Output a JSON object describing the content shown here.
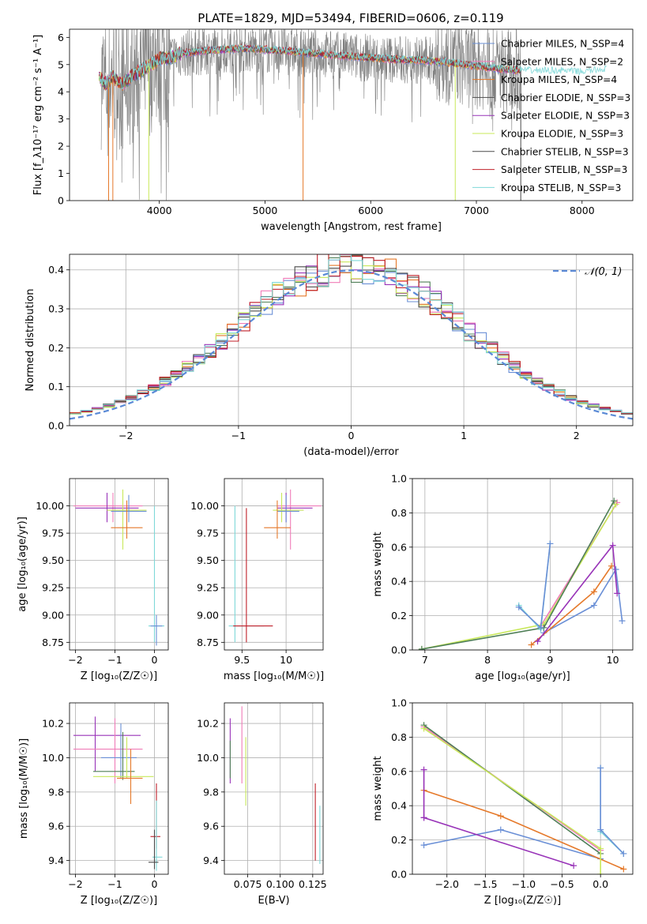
{
  "figure": {
    "title": "PLATE=1829, MJD=53494, FIBERID=0606, z=0.119"
  },
  "colors": {
    "chabrier_miles": "#6a8fd6",
    "salpeter_miles": "#f07cb8",
    "kroupa_miles": "#e5792a",
    "chabrier_elodie": "#4f7f57",
    "salpeter_elodie": "#9833b8",
    "kroupa_elodie": "#c8e85a",
    "chabrier_stelib": "#4a4a4a",
    "salpeter_stelib": "#c0202a",
    "kroupa_stelib": "#7fd8d8",
    "data": "#808080",
    "gaussian": "#5b8ad6",
    "grid": "#b0b0b0"
  },
  "chart_data": [
    {
      "id": "spectrum",
      "type": "line",
      "xlabel": "wavelength [Angstrom, rest frame]",
      "ylabel": "Flux [f_λ10⁻¹⁷ erg cm⁻² s⁻¹ A⁻¹]",
      "xlim": [
        3150,
        8480
      ],
      "ylim": [
        0,
        6.3
      ],
      "xticks": [
        4000,
        5000,
        6000,
        7000,
        8000
      ],
      "yticks": [
        0,
        1,
        2,
        3,
        4,
        5,
        6
      ],
      "grid": false,
      "legend_position": "right",
      "legend": [
        "Chabrier MILES, N_SSP=4",
        "Salpeter MILES, N_SSP=2",
        "Kroupa MILES, N_SSP=4",
        "Chabrier ELODIE, N_SSP=3",
        "Salpeter ELODIE, N_SSP=3",
        "Kroupa ELODIE, N_SSP=3",
        "Chabrier STELIB, N_SSP=3",
        "Salpeter STELIB, N_SSP=3",
        "Kroupa STELIB, N_SSP=3"
      ],
      "continuum": {
        "x": [
          3430,
          3500,
          3550,
          3650,
          3750,
          3900,
          4000,
          4100,
          4200,
          4400,
          4600,
          4800,
          5000,
          5200,
          5500,
          5800,
          6000,
          6200,
          6500,
          6800,
          7000,
          7200,
          7500,
          7800,
          8000,
          8200
        ],
        "y": [
          4.55,
          4.25,
          4.55,
          4.3,
          4.6,
          4.95,
          5.2,
          5.25,
          5.4,
          5.5,
          5.55,
          5.6,
          5.55,
          5.5,
          5.4,
          5.3,
          5.25,
          5.2,
          5.15,
          5.05,
          4.95,
          4.85,
          4.75,
          4.75,
          4.7,
          4.8
        ]
      }
    },
    {
      "id": "residuals",
      "type": "histogram",
      "xlabel": "(data-model)/error",
      "ylabel": "Normed distribution",
      "xlim": [
        -2.5,
        2.5
      ],
      "ylim": [
        0,
        0.44
      ],
      "xticks": [
        -2,
        -1,
        0,
        1,
        2
      ],
      "yticks": [
        0.0,
        0.1,
        0.2,
        0.3,
        0.4
      ],
      "grid": true,
      "legend_position": "top-right",
      "legend": [
        "𝒩(0, 1)"
      ],
      "bin_width": 0.1
    },
    {
      "id": "age_vs_Z",
      "type": "errorbar",
      "xlabel": "Z [log₁₀(Z/Z☉)]",
      "ylabel": "age  [log₁₀(age/yr)]",
      "xlim": [
        -2.15,
        0.35
      ],
      "ylim": [
        8.68,
        10.25
      ],
      "xticks": [
        -2,
        -1,
        0
      ],
      "yticks": [
        8.75,
        9.0,
        9.25,
        9.5,
        9.75,
        10.0
      ],
      "grid": true,
      "points": [
        {
          "x": -1.05,
          "y": 10.0,
          "xl": -2.05,
          "xh": -0.3,
          "yl": 9.85,
          "yh": 10.12,
          "c": "pink"
        },
        {
          "x": -1.2,
          "y": 9.98,
          "xl": -2.0,
          "xh": -0.4,
          "yl": 9.85,
          "yh": 10.12,
          "c": "purple"
        },
        {
          "x": -0.8,
          "y": 9.96,
          "xl": -1.2,
          "xh": -0.2,
          "yl": 9.6,
          "yh": 10.15,
          "c": "lime"
        },
        {
          "x": -0.65,
          "y": 9.95,
          "xl": -1.1,
          "xh": -0.2,
          "yl": 9.85,
          "yh": 10.1,
          "c": "blue"
        },
        {
          "x": -0.7,
          "y": 9.8,
          "xl": -1.1,
          "xh": -0.3,
          "yl": 9.7,
          "yh": 10.05,
          "c": "orange"
        },
        {
          "x": 0.0,
          "y": 8.9,
          "xl": -0.15,
          "xh": 0.25,
          "yl": 8.75,
          "yh": 10.0,
          "c": "teal"
        },
        {
          "x": 0.05,
          "y": 8.9,
          "xl": -0.1,
          "xh": 0.2,
          "yl": 8.72,
          "yh": 9.0,
          "c": "blue"
        }
      ]
    },
    {
      "id": "age_vs_mass",
      "type": "errorbar",
      "xlabel": "mass [log₁₀(M/M☉)]",
      "ylabel": "",
      "xlim": [
        9.3,
        10.42
      ],
      "ylim": [
        8.68,
        10.25
      ],
      "xticks": [
        9.5,
        10.0
      ],
      "yticks": [
        8.75,
        9.0,
        9.25,
        9.5,
        9.75,
        10.0
      ],
      "grid": true,
      "points": [
        {
          "x": 10.05,
          "y": 10.0,
          "xl": 9.9,
          "xh": 10.4,
          "yl": 9.6,
          "yh": 10.15,
          "c": "pink"
        },
        {
          "x": 10.0,
          "y": 9.98,
          "xl": 9.9,
          "xh": 10.3,
          "yl": 9.85,
          "yh": 10.12,
          "c": "purple"
        },
        {
          "x": 9.95,
          "y": 9.96,
          "xl": 9.85,
          "xh": 10.2,
          "yl": 9.85,
          "yh": 10.12,
          "c": "lime"
        },
        {
          "x": 10.0,
          "y": 9.95,
          "xl": 9.9,
          "xh": 10.15,
          "yl": 9.85,
          "yh": 10.1,
          "c": "blue"
        },
        {
          "x": 9.9,
          "y": 9.8,
          "xl": 9.75,
          "xh": 10.05,
          "yl": 9.7,
          "yh": 10.05,
          "c": "orange"
        },
        {
          "x": 9.42,
          "y": 8.9,
          "xl": 9.35,
          "xh": 9.75,
          "yl": 8.75,
          "yh": 10.0,
          "c": "teal"
        },
        {
          "x": 9.55,
          "y": 8.9,
          "xl": 9.4,
          "xh": 9.85,
          "yl": 8.75,
          "yh": 9.98,
          "c": "red"
        }
      ]
    },
    {
      "id": "weight_vs_age",
      "type": "line",
      "xlabel": "age  [log₁₀(age/yr)]",
      "ylabel": "mass weight",
      "xlim": [
        6.8,
        10.32
      ],
      "ylim": [
        0.0,
        1.0
      ],
      "xticks": [
        7,
        8,
        9,
        10
      ],
      "yticks": [
        0.0,
        0.2,
        0.4,
        0.6,
        0.8,
        1.0
      ],
      "grid": true,
      "series": [
        {
          "c": "blue",
          "x": [
            8.9,
            9.7,
            10.05,
            10.15
          ],
          "y": [
            0.1,
            0.26,
            0.47,
            0.17
          ]
        },
        {
          "c": "orange",
          "x": [
            8.7,
            9.7,
            9.98
          ],
          "y": [
            0.03,
            0.34,
            0.49
          ]
        },
        {
          "c": "purple",
          "x": [
            8.8,
            10.0,
            10.07
          ],
          "y": [
            0.05,
            0.61,
            0.33
          ]
        },
        {
          "c": "pink",
          "x": [
            8.85,
            10.07
          ],
          "y": [
            0.14,
            0.86
          ]
        },
        {
          "c": "lime",
          "x": [
            6.95,
            8.9,
            10.05
          ],
          "y": [
            0.005,
            0.15,
            0.85
          ]
        },
        {
          "c": "green",
          "x": [
            6.95,
            8.9,
            10.02
          ],
          "y": [
            0.005,
            0.13,
            0.87
          ]
        },
        {
          "c": "teal",
          "x": [
            8.5,
            8.85,
            9.0
          ],
          "y": [
            0.26,
            0.12,
            0.62
          ]
        },
        {
          "c": "blue",
          "x": [
            8.5,
            8.85,
            9.0
          ],
          "y": [
            0.25,
            0.13,
            0.62
          ]
        }
      ]
    },
    {
      "id": "mass_vs_Z",
      "type": "errorbar",
      "xlabel": "Z [log₁₀(Z/Z☉)]",
      "ylabel": "mass [log₁₀(M/M☉)]",
      "xlim": [
        -2.15,
        0.35
      ],
      "ylim": [
        9.32,
        10.32
      ],
      "xticks": [
        -2,
        -1,
        0
      ],
      "yticks": [
        9.4,
        9.6,
        9.8,
        10.0,
        10.2
      ],
      "grid": true,
      "points": [
        {
          "x": -1.5,
          "y": 10.13,
          "xl": -2.05,
          "xh": -0.35,
          "yl": 9.92,
          "yh": 10.24,
          "c": "purple"
        },
        {
          "x": -1.0,
          "y": 10.05,
          "xl": -2.05,
          "xh": -0.3,
          "yl": 9.85,
          "yh": 10.23,
          "c": "pink"
        },
        {
          "x": -0.85,
          "y": 10.0,
          "xl": -1.35,
          "xh": -0.45,
          "yl": 9.88,
          "yh": 10.2,
          "c": "blue"
        },
        {
          "x": -0.8,
          "y": 9.92,
          "xl": -1.55,
          "xh": -0.5,
          "yl": 9.87,
          "yh": 10.15,
          "c": "green"
        },
        {
          "x": -0.7,
          "y": 9.89,
          "xl": -1.55,
          "xh": -0.02,
          "yl": 9.88,
          "yh": 10.12,
          "c": "lime"
        },
        {
          "x": -0.6,
          "y": 9.88,
          "xl": -0.95,
          "xh": -0.3,
          "yl": 9.73,
          "yh": 10.05,
          "c": "orange"
        },
        {
          "x": 0.05,
          "y": 9.54,
          "xl": -0.1,
          "xh": 0.15,
          "yl": 9.47,
          "yh": 9.85,
          "c": "red"
        },
        {
          "x": 0.05,
          "y": 9.42,
          "xl": -0.05,
          "xh": 0.2,
          "yl": 9.34,
          "yh": 9.75,
          "c": "teal"
        },
        {
          "x": 0.0,
          "y": 9.39,
          "xl": -0.15,
          "xh": 0.1,
          "yl": 9.35,
          "yh": 9.58,
          "c": "stelib"
        }
      ]
    },
    {
      "id": "mass_vs_EBV",
      "type": "errorbar",
      "xlabel": "E(B-V)",
      "ylabel": "",
      "xlim": [
        0.057,
        0.133
      ],
      "ylim": [
        9.32,
        10.32
      ],
      "xticks": [
        0.075,
        0.1,
        0.125
      ],
      "xticklabels": [
        "0.075",
        "0.100",
        "0.125"
      ],
      "yticks": [
        9.4,
        9.6,
        9.8,
        10.0,
        10.2
      ],
      "grid": true,
      "points": [
        {
          "x": 0.0615,
          "y": 10.05,
          "yl": 9.85,
          "yh": 10.23,
          "c": "purple"
        },
        {
          "x": 0.0615,
          "y": 10.0,
          "yl": 9.88,
          "yh": 10.1,
          "c": "green"
        },
        {
          "x": 0.0705,
          "y": 10.05,
          "yl": 9.85,
          "yh": 10.3,
          "c": "pink"
        },
        {
          "x": 0.0735,
          "y": 9.9,
          "yl": 9.72,
          "yh": 10.12,
          "c": "lime"
        },
        {
          "x": 0.127,
          "y": 9.55,
          "yl": 9.4,
          "yh": 9.85,
          "c": "red"
        },
        {
          "x": 0.1305,
          "y": 9.45,
          "yl": 9.38,
          "yh": 9.72,
          "c": "teal"
        }
      ]
    },
    {
      "id": "weight_vs_Z",
      "type": "line",
      "xlabel": "Z [log₁₀(Z/Z☉)]",
      "ylabel": "mass weight",
      "xlim": [
        -2.45,
        0.42
      ],
      "ylim": [
        0.0,
        1.0
      ],
      "xticks": [
        -2.0,
        -1.5,
        -1.0,
        -0.5,
        0.0
      ],
      "xticklabels": [
        "−2.0",
        "−1.5",
        "−1.0",
        "−0.5",
        "0.0"
      ],
      "yticks": [
        0.0,
        0.2,
        0.4,
        0.6,
        0.8,
        1.0
      ],
      "grid": true,
      "series": [
        {
          "c": "blue",
          "x": [
            -2.3,
            -1.3,
            0.0
          ],
          "y": [
            0.17,
            0.26,
            0.09
          ]
        },
        {
          "c": "orange",
          "x": [
            -2.3,
            -1.3,
            0.3
          ],
          "y": [
            0.49,
            0.34,
            0.03
          ]
        },
        {
          "c": "purple",
          "x": [
            -2.3,
            -2.3,
            -2.3,
            -0.35
          ],
          "y": [
            0.61,
            0.33,
            0.33,
            0.05
          ]
        },
        {
          "c": "pink",
          "x": [
            -2.3,
            0.0
          ],
          "y": [
            0.86,
            0.14
          ]
        },
        {
          "c": "green",
          "x": [
            -2.3,
            0.0
          ],
          "y": [
            0.87,
            0.12
          ]
        },
        {
          "c": "lime",
          "x": [
            -2.3,
            0.0,
            0.0
          ],
          "y": [
            0.85,
            0.15,
            0.0
          ]
        },
        {
          "c": "teal",
          "x": [
            0.0,
            0.0,
            0.3
          ],
          "y": [
            0.62,
            0.25,
            0.12
          ]
        },
        {
          "c": "blue",
          "x": [
            0.0,
            0.0,
            0.3
          ],
          "y": [
            0.62,
            0.26,
            0.12
          ]
        }
      ]
    }
  ]
}
